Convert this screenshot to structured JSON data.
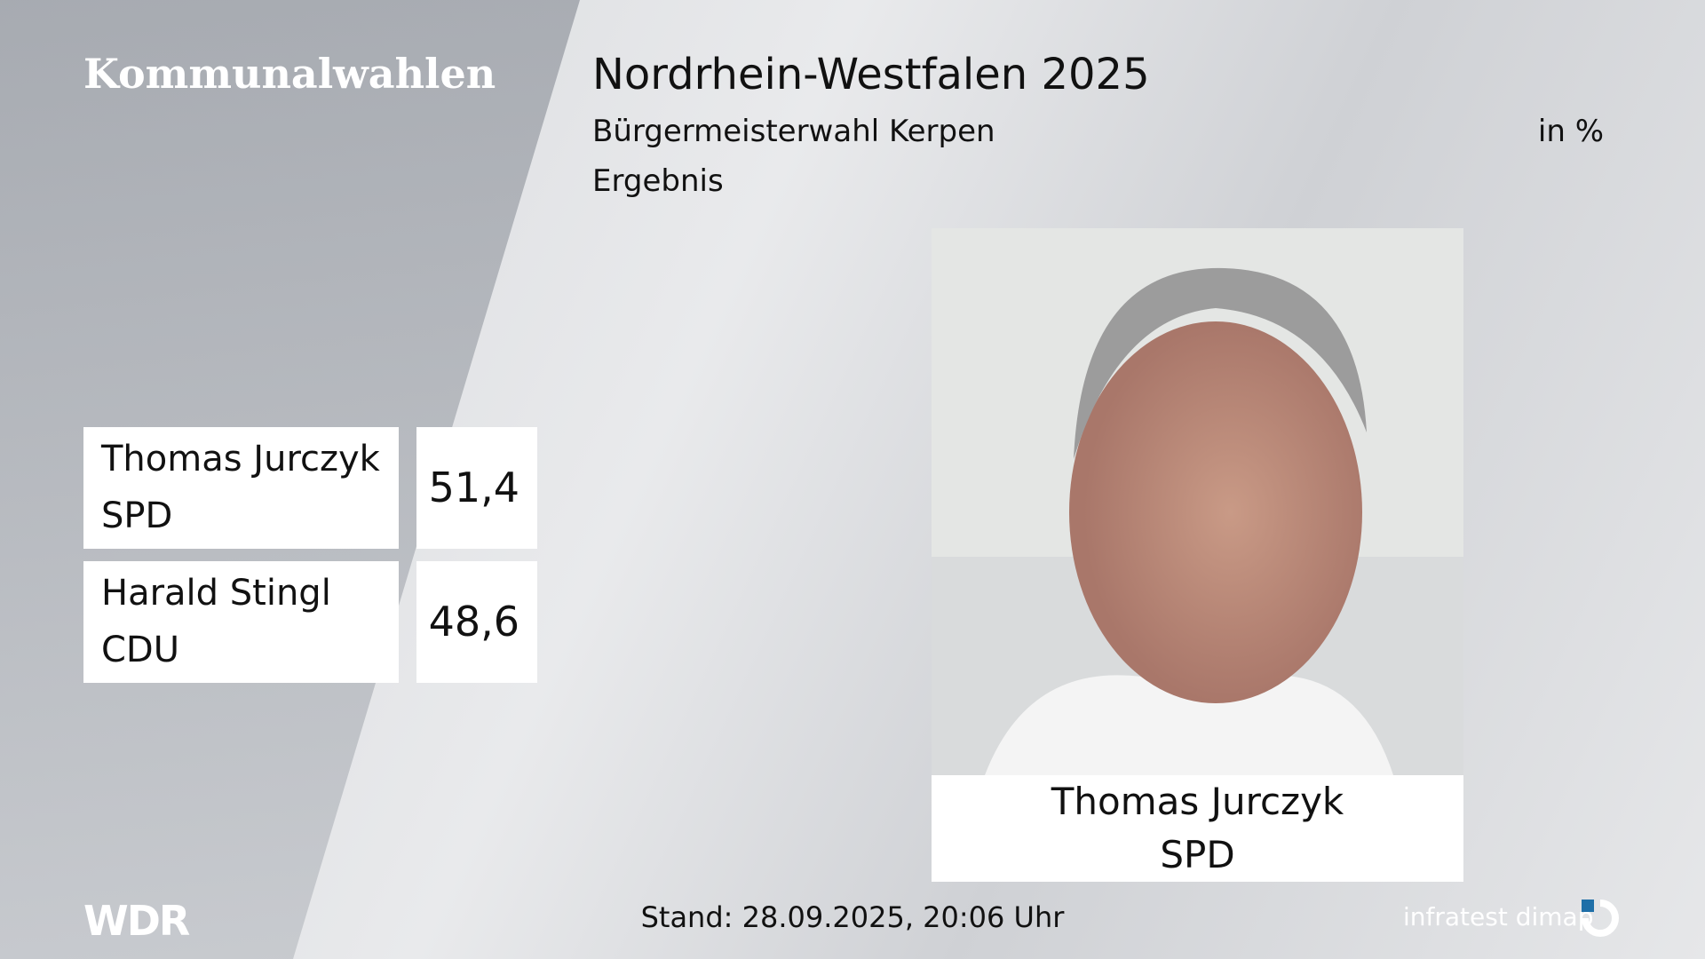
{
  "header": {
    "left_title": "Kommunalwahlen",
    "title": "Nordrhein-Westfalen 2025",
    "subtitle": "Bürgermeisterwahl Kerpen",
    "unit": "in %",
    "label": "Ergebnis"
  },
  "results": {
    "rows": [
      {
        "name": "Thomas Jurczyk",
        "party": "SPD",
        "value": "51,4"
      },
      {
        "name": "Harald Stingl",
        "party": "CDU",
        "value": "48,6"
      }
    ]
  },
  "photo_caption": {
    "name": "Thomas Jurczyk",
    "party": "SPD"
  },
  "footer": {
    "logo": "WDR",
    "stand": "Stand: 28.09.2025, 20:06 Uhr",
    "source": "infratest dimap"
  }
}
